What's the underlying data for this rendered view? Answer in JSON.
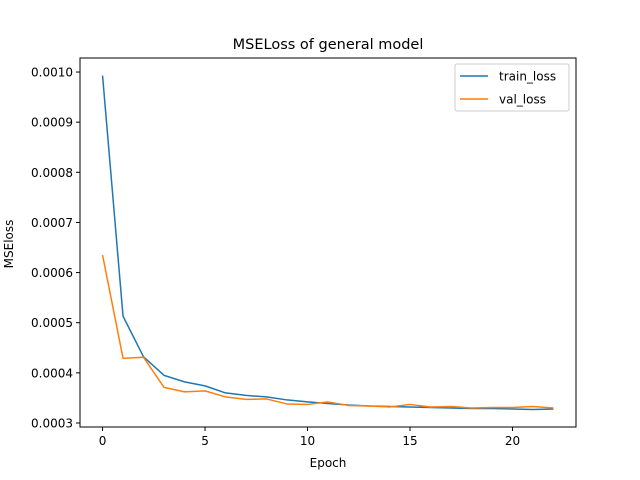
{
  "chart_data": {
    "type": "line",
    "title": "MSELoss of general model",
    "xlabel": "Epoch",
    "ylabel": "MSEloss",
    "xlim": [
      -1.1,
      23.1
    ],
    "ylim": [
      0.0003,
      0.001
    ],
    "xticks": [
      0,
      5,
      10,
      15,
      20
    ],
    "yticks": [
      0.0003,
      0.0004,
      0.0005,
      0.0006,
      0.0007,
      0.0008,
      0.0009,
      0.001
    ],
    "ytick_labels": [
      "0.0003",
      "0.0004",
      "0.0005",
      "0.0006",
      "0.0007",
      "0.0008",
      "0.0009",
      "0.0010"
    ],
    "x": [
      0,
      1,
      2,
      3,
      4,
      5,
      6,
      7,
      8,
      9,
      10,
      11,
      12,
      13,
      14,
      15,
      16,
      17,
      18,
      19,
      20,
      21,
      22
    ],
    "legend": {
      "position": "top-right"
    },
    "grid": false,
    "series": [
      {
        "name": "train_loss",
        "color": "#1f77b4",
        "values": [
          0.000993,
          0.000513,
          0.000432,
          0.000395,
          0.000382,
          0.000374,
          0.00036,
          0.000355,
          0.000352,
          0.000346,
          0.000342,
          0.000339,
          0.000336,
          0.000334,
          0.000333,
          0.000332,
          0.000331,
          0.00033,
          0.000329,
          0.000329,
          0.000328,
          0.000327,
          0.000328
        ]
      },
      {
        "name": "val_loss",
        "color": "#ff7f0e",
        "values": [
          0.000635,
          0.000429,
          0.000431,
          0.000371,
          0.000362,
          0.000364,
          0.000352,
          0.000347,
          0.000348,
          0.000338,
          0.000337,
          0.000342,
          0.000335,
          0.000334,
          0.000332,
          0.000337,
          0.000332,
          0.000333,
          0.00033,
          0.000331,
          0.000331,
          0.000333,
          0.00033
        ]
      }
    ]
  }
}
